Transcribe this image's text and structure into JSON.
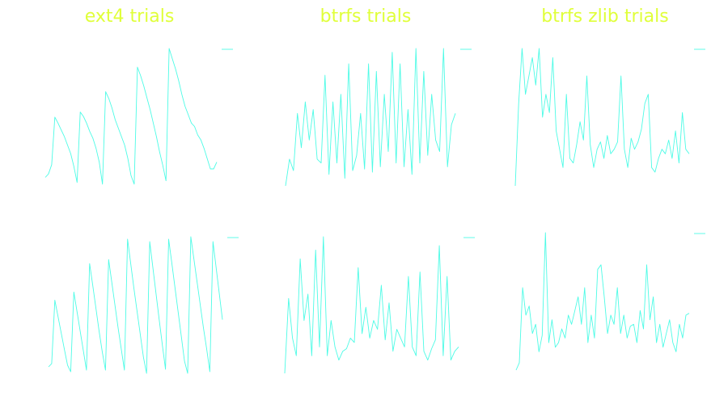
{
  "colors": {
    "line": "#4dfbe6",
    "title": "#e0ff3a",
    "background": "#ffffff"
  },
  "chart_data": [
    {
      "type": "line",
      "title": "ext4 trials",
      "row": 1,
      "y": [
        10,
        14,
        25,
        81,
        74,
        66,
        58,
        48,
        38,
        23,
        4,
        87,
        82,
        74,
        64,
        56,
        44,
        28,
        2,
        111,
        103,
        92,
        78,
        68,
        58,
        48,
        32,
        12,
        2,
        140,
        130,
        118,
        104,
        90,
        74,
        58,
        40,
        24,
        6,
        162,
        150,
        138,
        124,
        108,
        94,
        84,
        74,
        70,
        60,
        54,
        44,
        32,
        20,
        20,
        28
      ]
    },
    {
      "type": "line",
      "title": "btrfs trials",
      "row": 1,
      "y": [
        0,
        35,
        20,
        95,
        50,
        110,
        60,
        100,
        35,
        30,
        145,
        15,
        110,
        30,
        120,
        10,
        160,
        20,
        40,
        95,
        22,
        160,
        18,
        150,
        25,
        120,
        45,
        175,
        30,
        160,
        25,
        100,
        15,
        180,
        30,
        150,
        40,
        120,
        60,
        45,
        180,
        25,
        80,
        95
      ]
    },
    {
      "type": "line",
      "title": "btrfs zlib trials",
      "row": 1,
      "y": [
        0,
        90,
        150,
        100,
        120,
        140,
        110,
        150,
        75,
        100,
        80,
        140,
        60,
        40,
        20,
        100,
        30,
        25,
        45,
        70,
        50,
        120,
        45,
        20,
        40,
        48,
        30,
        55,
        35,
        40,
        48,
        120,
        40,
        20,
        52,
        40,
        48,
        62,
        90,
        100,
        20,
        15,
        30,
        40,
        35,
        50,
        30,
        60,
        25,
        80,
        40,
        35
      ]
    },
    {
      "type": "line",
      "row": 2,
      "y": [
        8,
        12,
        90,
        70,
        50,
        30,
        10,
        2,
        100,
        76,
        52,
        28,
        4,
        135,
        108,
        80,
        52,
        26,
        4,
        140,
        112,
        84,
        56,
        30,
        4,
        165,
        135,
        105,
        76,
        48,
        20,
        0,
        162,
        130,
        98,
        66,
        35,
        5,
        165,
        135,
        105,
        75,
        45,
        15,
        0,
        168,
        140,
        112,
        84,
        56,
        30,
        2,
        162,
        130,
        98,
        66
      ]
    },
    {
      "type": "line",
      "row": 2,
      "y": [
        0,
        85,
        40,
        20,
        130,
        60,
        90,
        20,
        140,
        30,
        155,
        20,
        60,
        30,
        15,
        25,
        28,
        40,
        35,
        120,
        45,
        75,
        40,
        60,
        50,
        100,
        38,
        80,
        25,
        50,
        40,
        30,
        110,
        30,
        20,
        115,
        25,
        15,
        28,
        38,
        145,
        20,
        110,
        15,
        25,
        30
      ]
    },
    {
      "type": "line",
      "row": 2,
      "y": [
        0,
        8,
        90,
        60,
        70,
        40,
        50,
        20,
        38,
        150,
        30,
        55,
        25,
        30,
        45,
        35,
        60,
        50,
        65,
        80,
        50,
        90,
        30,
        60,
        35,
        110,
        115,
        80,
        40,
        60,
        50,
        90,
        40,
        60,
        35,
        48,
        50,
        30,
        65,
        45,
        115,
        55,
        80,
        30,
        50,
        25,
        40,
        55,
        30,
        20,
        50,
        35,
        60,
        62
      ]
    }
  ]
}
